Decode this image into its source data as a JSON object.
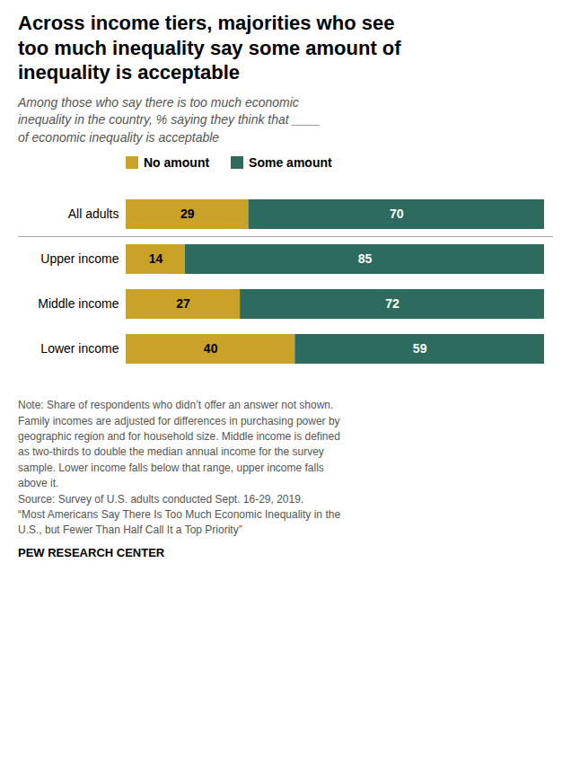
{
  "chart_data": {
    "type": "bar",
    "orientation": "horizontal",
    "stacked": true,
    "title": "Across income tiers, majorities who see\ntoo much inequality say some amount of\ninequality is acceptable",
    "subtitle": "Among those who say there is too much economic\ninequality in the country, % saying they think that ____\nof economic inequality is acceptable",
    "categories": [
      "All adults",
      "Upper income",
      "Middle income",
      "Lower income"
    ],
    "series": [
      {
        "name": "No amount",
        "color": "#C9A227",
        "values": [
          29,
          14,
          27,
          40
        ]
      },
      {
        "name": "Some amount",
        "color": "#2D6B5E",
        "values": [
          70,
          85,
          72,
          59
        ]
      }
    ],
    "data_labels": true,
    "tick_labels": "y",
    "legend": "top",
    "note": "Note: Share of respondents who didn’t offer an answer not shown.\nFamily incomes are adjusted for differences in purchasing power by\ngeographic region and for household size. Middle income is defined\nas two-thirds to double the median annual income for the survey\nsample. Lower income falls below that range, upper income falls\nabove it.\nSource: Survey of U.S. adults conducted Sept. 16-29, 2019.\n“Most Americans Say There Is Too Much Economic Inequality in the\nU.S., but Fewer Than Half Call It a Top Priority”",
    "source": "PEW RESEARCH CENTER"
  }
}
